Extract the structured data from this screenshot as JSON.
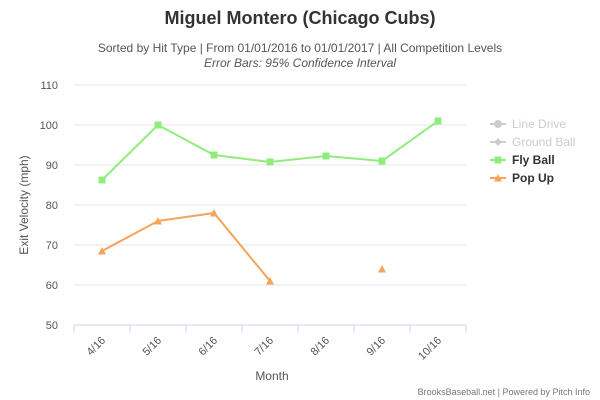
{
  "chart_data": {
    "type": "line",
    "title": "Miguel Montero (Chicago Cubs)",
    "subtitle": "Sorted by Hit Type | From 01/01/2016 to 01/01/2017 | All Competition Levels",
    "annotation": "Error Bars: 95% Confidence Interval",
    "x_label": "Month",
    "y_label": "Exit Velocity (mph)",
    "credits": "BrooksBaseball.net | Powered by Pitch Info",
    "categories": [
      "4/16",
      "5/16",
      "6/16",
      "7/16",
      "8/16",
      "9/16",
      "10/16"
    ],
    "ylim": [
      50,
      110
    ],
    "yticks": [
      50,
      60,
      70,
      80,
      90,
      100,
      110
    ],
    "grid": true,
    "legend": "right",
    "series": [
      {
        "name": "Line Drive",
        "color": "#cccccc",
        "marker": "circle",
        "hidden": true,
        "values": [
          null,
          null,
          null,
          null,
          null,
          null,
          null
        ]
      },
      {
        "name": "Ground Ball",
        "color": "#cccccc",
        "marker": "diamond",
        "hidden": true,
        "values": [
          null,
          null,
          null,
          null,
          null,
          null,
          null
        ]
      },
      {
        "name": "Fly Ball",
        "color": "#90ed7d",
        "marker": "square",
        "values": [
          86.25,
          100,
          92.5,
          90.75,
          92.25,
          91,
          101
        ]
      },
      {
        "name": "Pop Up",
        "color": "#f7a35c",
        "marker": "triangle",
        "values": [
          68.5,
          76,
          78,
          61,
          null,
          64,
          null
        ]
      }
    ]
  }
}
